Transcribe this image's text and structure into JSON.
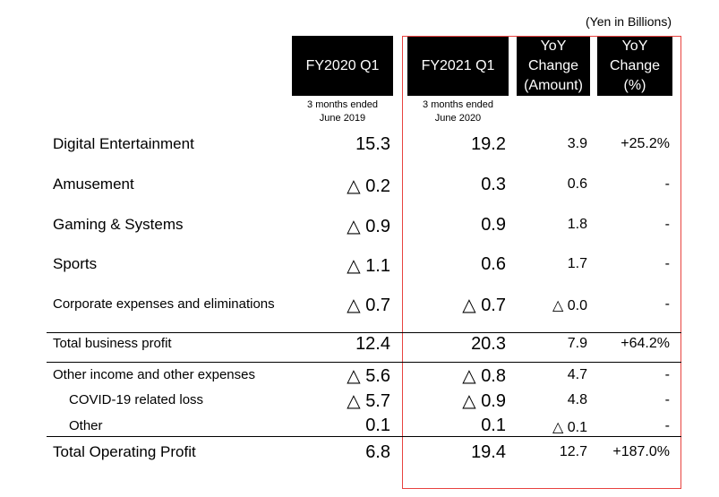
{
  "unit_note": "(Yen in Billions)",
  "headers": {
    "fy2020": "FY2020 Q1",
    "fy2021": "FY2021 Q1",
    "yoy_amount": "YoY\nChange\n(Amount)",
    "yoy_pct": "YoY\nChange\n(%)"
  },
  "subheaders": {
    "fy2020": "3 months ended\nJune 2019",
    "fy2021": "3 months ended\nJune 2020"
  },
  "rows": [
    {
      "label": "Digital Entertainment",
      "fy2020": "15.3",
      "fy2021": "19.2",
      "yoy_amount": "3.9",
      "yoy_pct": "+25.2%"
    },
    {
      "label": "Amusement",
      "fy2020": "△ 0.2",
      "fy2021": "0.3",
      "yoy_amount": "0.6",
      "yoy_pct": "-"
    },
    {
      "label": "Gaming & Systems",
      "fy2020": "△ 0.9",
      "fy2021": "0.9",
      "yoy_amount": "1.8",
      "yoy_pct": "-"
    },
    {
      "label": "Sports",
      "fy2020": "△ 1.1",
      "fy2021": "0.6",
      "yoy_amount": "1.7",
      "yoy_pct": "-"
    },
    {
      "label": "Corporate expenses and eliminations",
      "fy2020": "△ 0.7",
      "fy2021": "△ 0.7",
      "yoy_amount": "△ 0.0",
      "yoy_pct": "-"
    },
    {
      "label": "Total business profit",
      "fy2020": "12.4",
      "fy2021": "20.3",
      "yoy_amount": "7.9",
      "yoy_pct": "+64.2%"
    },
    {
      "label": "Other income and other expenses",
      "fy2020": "△ 5.6",
      "fy2021": "△ 0.8",
      "yoy_amount": "4.7",
      "yoy_pct": "-"
    },
    {
      "label": "COVID-19 related loss",
      "fy2020": "△ 5.7",
      "fy2021": "△ 0.9",
      "yoy_amount": "4.8",
      "yoy_pct": "-"
    },
    {
      "label": "Other",
      "fy2020": "0.1",
      "fy2021": "0.1",
      "yoy_amount": "△ 0.1",
      "yoy_pct": "-"
    },
    {
      "label": "Total Operating Profit",
      "fy2020": "6.8",
      "fy2021": "19.4",
      "yoy_amount": "12.7",
      "yoy_pct": "+187.0%"
    }
  ]
}
